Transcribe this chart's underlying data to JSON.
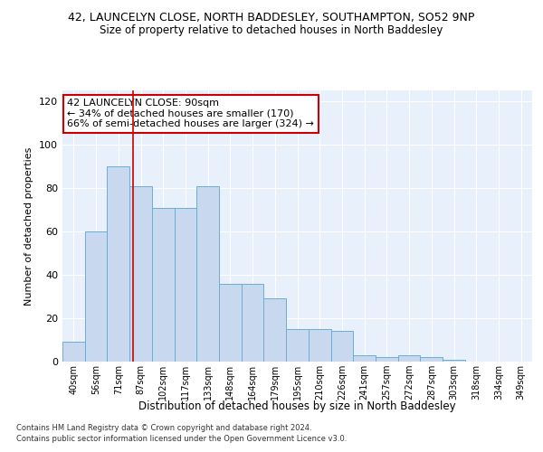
{
  "title1": "42, LAUNCELYN CLOSE, NORTH BADDESLEY, SOUTHAMPTON, SO52 9NP",
  "title2": "Size of property relative to detached houses in North Baddesley",
  "xlabel": "Distribution of detached houses by size in North Baddesley",
  "ylabel": "Number of detached properties",
  "categories": [
    "40sqm",
    "56sqm",
    "71sqm",
    "87sqm",
    "102sqm",
    "117sqm",
    "133sqm",
    "148sqm",
    "164sqm",
    "179sqm",
    "195sqm",
    "210sqm",
    "226sqm",
    "241sqm",
    "257sqm",
    "272sqm",
    "287sqm",
    "303sqm",
    "318sqm",
    "334sqm",
    "349sqm"
  ],
  "values": [
    9,
    60,
    90,
    81,
    71,
    71,
    81,
    36,
    36,
    29,
    15,
    15,
    14,
    3,
    2,
    3,
    2,
    1,
    0,
    0,
    0
  ],
  "bar_color": "#c8d9ef",
  "bar_edge_color": "#6baed6",
  "vline_color": "#cc0000",
  "vline_pos": 2.67,
  "annotation_text": "42 LAUNCELYN CLOSE: 90sqm\n← 34% of detached houses are smaller (170)\n66% of semi-detached houses are larger (324) →",
  "annotation_box_color": "white",
  "annotation_box_edge_color": "#cc0000",
  "ylim": [
    0,
    125
  ],
  "yticks": [
    0,
    20,
    40,
    60,
    80,
    100,
    120
  ],
  "background_color": "#e8f0fb",
  "grid_color": "white",
  "footer1": "Contains HM Land Registry data © Crown copyright and database right 2024.",
  "footer2": "Contains public sector information licensed under the Open Government Licence v3.0."
}
